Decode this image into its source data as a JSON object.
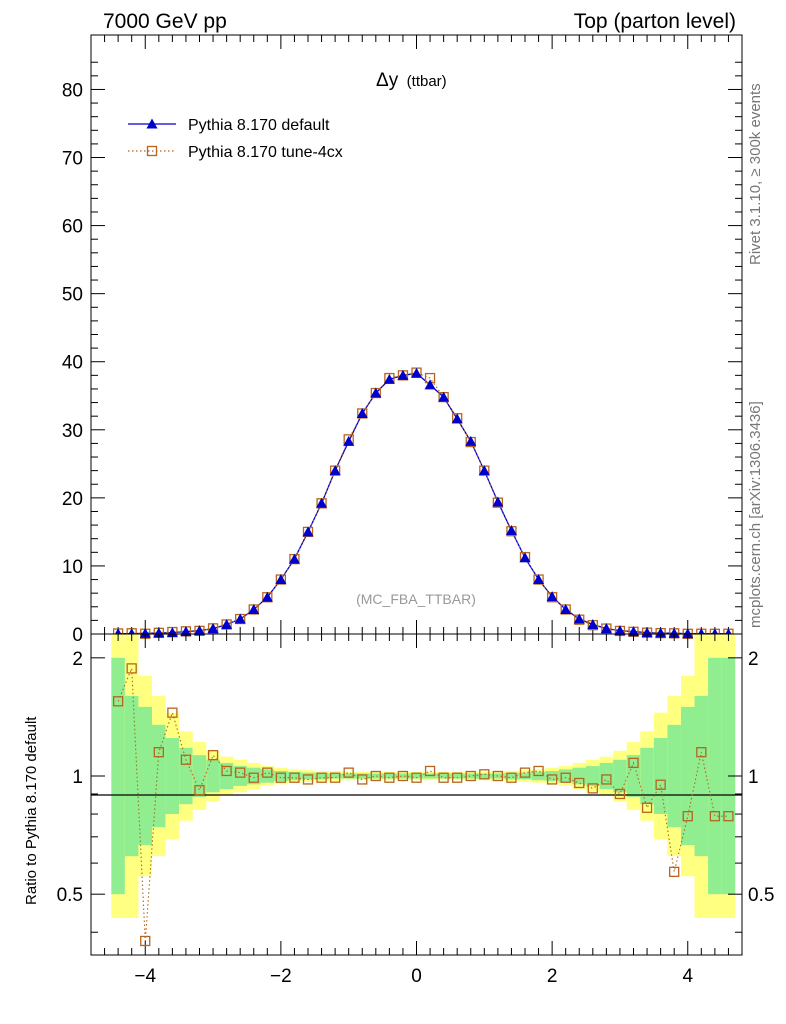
{
  "header": {
    "left": "7000 GeV pp",
    "right": "Top (parton level)"
  },
  "side": {
    "top": "Rivet 3.1.10, ≥ 300k events",
    "bottom": "mcplots.cern.ch [arXiv:1306.3436]"
  },
  "chart_data": [
    {
      "type": "line",
      "title_main": "Δy",
      "title_sub": "(ttbar)",
      "annotation": "(MC_FBA_TTBAR)",
      "xlim": [
        -4.8,
        4.8
      ],
      "ylim": [
        0,
        88
      ],
      "yticks": [
        0,
        10,
        20,
        30,
        40,
        50,
        60,
        70,
        80
      ],
      "legend_position": "top-left",
      "x": [
        -4.4,
        -4.2,
        -4.0,
        -3.8,
        -3.6,
        -3.4,
        -3.2,
        -3.0,
        -2.8,
        -2.6,
        -2.4,
        -2.2,
        -2.0,
        -1.8,
        -1.6,
        -1.4,
        -1.2,
        -1.0,
        -0.8,
        -0.6,
        -0.4,
        -0.2,
        0.0,
        0.2,
        0.4,
        0.6,
        0.8,
        1.0,
        1.2,
        1.4,
        1.6,
        1.8,
        2.0,
        2.2,
        2.4,
        2.6,
        2.8,
        3.0,
        3.2,
        3.4,
        3.6,
        3.8,
        4.0,
        4.2,
        4.4,
        4.6
      ],
      "series": [
        {
          "name": "Pythia 8.170 default",
          "color": "#0000cc",
          "marker": "triangle",
          "values": [
            0.05,
            0.06,
            0.1,
            0.15,
            0.2,
            0.35,
            0.5,
            0.8,
            1.4,
            2.2,
            3.6,
            5.4,
            8.0,
            11.0,
            15.0,
            19.2,
            24.0,
            28.3,
            32.4,
            35.4,
            37.4,
            38.0,
            38.3,
            36.6,
            34.8,
            31.6,
            28.3,
            24.0,
            19.4,
            15.2,
            11.2,
            8.0,
            5.5,
            3.6,
            2.2,
            1.4,
            0.8,
            0.5,
            0.35,
            0.2,
            0.15,
            0.1,
            0.06,
            0.05,
            0.04,
            0.04
          ]
        },
        {
          "name": "Pythia 8.170 tune-4cx",
          "color": "#b5651d",
          "marker": "open-square",
          "values": [
            0.08,
            0.11,
            0.04,
            0.17,
            0.29,
            0.39,
            0.46,
            0.83,
            1.4,
            2.2,
            3.6,
            5.4,
            8.0,
            11.0,
            15.0,
            19.2,
            24.0,
            28.6,
            32.4,
            35.4,
            37.6,
            38.0,
            38.4,
            37.6,
            34.8,
            31.7,
            28.2,
            24.0,
            19.3,
            15.1,
            11.3,
            8.0,
            5.4,
            3.6,
            2.1,
            1.3,
            0.8,
            0.45,
            0.32,
            0.2,
            0.13,
            0.1,
            0.03,
            0.04,
            0.03,
            0.04
          ]
        }
      ]
    },
    {
      "type": "line",
      "ylabel": "Ratio to Pythia 8.170 default",
      "xlim": [
        -4.8,
        4.8
      ],
      "ylim": [
        0.35,
        2.3
      ],
      "yscale": "log",
      "yticks": [
        0.5,
        1,
        2
      ],
      "ytick_labels": [
        "0.5",
        "1",
        "2"
      ],
      "xticks": [
        -4,
        -2,
        0,
        2,
        4
      ],
      "xtick_labels": [
        "−4",
        "−2",
        "0",
        "2",
        "4"
      ],
      "x": [
        -4.4,
        -4.2,
        -4.0,
        -3.8,
        -3.6,
        -3.4,
        -3.2,
        -3.0,
        -2.8,
        -2.6,
        -2.4,
        -2.2,
        -2.0,
        -1.8,
        -1.6,
        -1.4,
        -1.2,
        -1.0,
        -0.8,
        -0.6,
        -0.4,
        -0.2,
        0.0,
        0.2,
        0.4,
        0.6,
        0.8,
        1.0,
        1.2,
        1.4,
        1.6,
        1.8,
        2.0,
        2.2,
        2.4,
        2.6,
        2.8,
        3.0,
        3.2,
        3.4,
        3.6,
        3.8,
        4.0,
        4.2,
        4.4,
        4.6
      ],
      "band_inner": [
        2.0,
        1.6,
        1.5,
        1.35,
        1.25,
        1.18,
        1.13,
        1.1,
        1.08,
        1.06,
        1.05,
        1.04,
        1.03,
        1.025,
        1.02,
        1.02,
        1.015,
        1.015,
        1.015,
        1.015,
        1.015,
        1.015,
        1.015,
        1.015,
        1.015,
        1.015,
        1.015,
        1.015,
        1.015,
        1.02,
        1.02,
        1.025,
        1.03,
        1.04,
        1.05,
        1.06,
        1.08,
        1.1,
        1.13,
        1.18,
        1.25,
        1.35,
        1.5,
        1.6,
        2.0,
        2.0
      ],
      "band_outer": [
        2.3,
        2.3,
        1.8,
        1.6,
        1.45,
        1.3,
        1.22,
        1.16,
        1.12,
        1.1,
        1.08,
        1.06,
        1.05,
        1.04,
        1.035,
        1.03,
        1.03,
        1.025,
        1.025,
        1.025,
        1.025,
        1.025,
        1.025,
        1.025,
        1.025,
        1.025,
        1.025,
        1.025,
        1.03,
        1.03,
        1.035,
        1.04,
        1.05,
        1.06,
        1.08,
        1.1,
        1.12,
        1.16,
        1.22,
        1.3,
        1.45,
        1.6,
        1.8,
        2.3,
        2.3,
        2.3
      ],
      "series": [
        {
          "name": "Pythia 8.170 tune-4cx",
          "color": "#b5651d",
          "marker": "open-square",
          "values": [
            1.55,
            1.88,
            0.38,
            1.15,
            1.45,
            1.1,
            0.92,
            1.13,
            1.03,
            1.02,
            0.99,
            1.02,
            0.99,
            0.99,
            0.98,
            0.99,
            0.99,
            1.02,
            0.98,
            1.0,
            0.99,
            1.0,
            0.99,
            1.03,
            0.99,
            0.99,
            1.0,
            1.01,
            1.0,
            0.99,
            1.02,
            1.03,
            0.98,
            0.99,
            0.96,
            0.93,
            0.98,
            0.9,
            1.08,
            0.83,
            0.95,
            0.57,
            0.79,
            1.15,
            0.79,
            0.79
          ]
        }
      ]
    }
  ]
}
